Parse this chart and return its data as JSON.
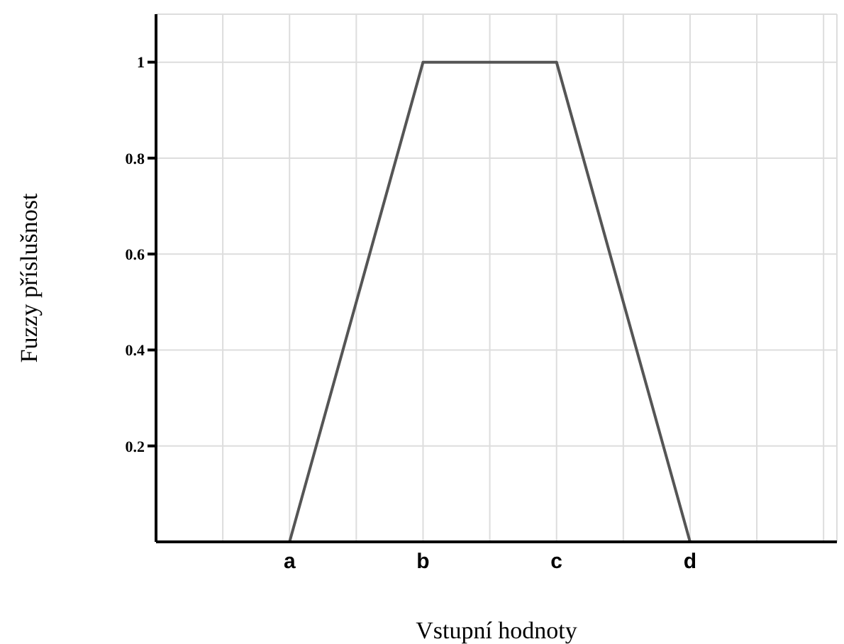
{
  "chart_data": {
    "type": "line",
    "xlabel": "Vstupní hodnoty",
    "ylabel": "Fuzzy příslušnost",
    "categories": [
      null,
      null,
      "a",
      null,
      "b",
      null,
      "c",
      null,
      "d",
      null,
      null
    ],
    "series": [
      {
        "color": "#555555",
        "values": [
          null,
          null,
          0,
          null,
          1,
          null,
          1,
          null,
          0,
          null,
          null
        ]
      }
    ],
    "ylim": [
      0,
      1.1
    ],
    "yticks": [
      0.2,
      0.4,
      0.6,
      0.8,
      1
    ],
    "grid": true,
    "marker": "none",
    "line_style": "solid",
    "legend": false
  }
}
